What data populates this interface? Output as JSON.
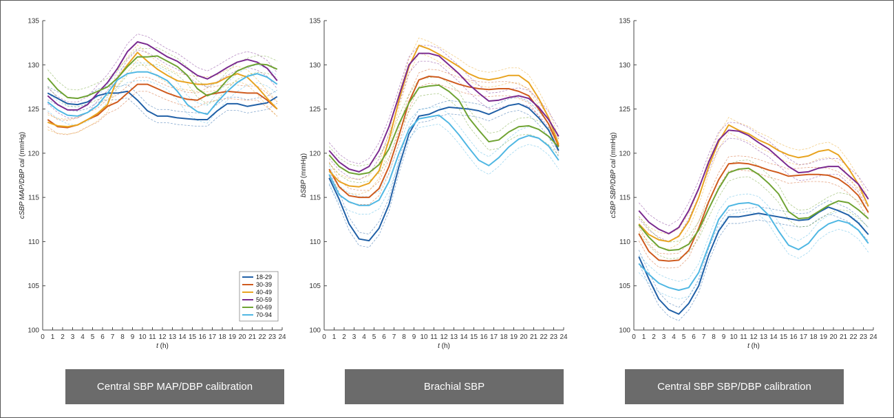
{
  "chart_data": [
    {
      "type": "line",
      "x": [
        0.5,
        1.5,
        2.5,
        3.5,
        4.5,
        5.5,
        6.5,
        7.5,
        8.5,
        9.5,
        10.5,
        11.5,
        12.5,
        13.5,
        14.5,
        15.5,
        16.5,
        17.5,
        18.5,
        19.5,
        20.5,
        21.5,
        22.5,
        23.5
      ],
      "xlabel": "t (h)",
      "ylabel_main": "cSBP MAP/DBP cal",
      "ylabel_unit": "(mmHg)",
      "xlim": [
        0,
        24
      ],
      "ylim": [
        100,
        135
      ],
      "xticks": [
        0,
        1,
        2,
        3,
        4,
        5,
        6,
        7,
        8,
        9,
        10,
        11,
        12,
        13,
        14,
        15,
        16,
        17,
        18,
        19,
        20,
        21,
        22,
        23,
        24
      ],
      "yticks": [
        100,
        105,
        110,
        115,
        120,
        125,
        130,
        135
      ],
      "legend_loc": "lower-right",
      "series": [
        {
          "name": "18-29",
          "color": "#1f5fa6",
          "values": [
            126.8,
            126.2,
            125.6,
            125.5,
            125.8,
            126.5,
            126.8,
            126.8,
            127.0,
            126.0,
            124.8,
            124.2,
            124.2,
            124.0,
            123.9,
            123.8,
            123.8,
            124.8,
            125.6,
            125.6,
            125.3,
            125.5,
            125.7,
            126.4
          ]
        },
        {
          "name": "30-39",
          "color": "#cf5a1d",
          "values": [
            123.8,
            123.0,
            122.9,
            123.2,
            123.8,
            124.3,
            125.3,
            125.8,
            126.8,
            127.8,
            127.8,
            127.3,
            126.8,
            126.4,
            126.1,
            126.0,
            126.6,
            126.8,
            127.0,
            126.9,
            126.8,
            126.8,
            126.0,
            125.0
          ]
        },
        {
          "name": "40-49",
          "color": "#e8a31f",
          "values": [
            123.5,
            123.1,
            123.0,
            123.2,
            123.8,
            124.5,
            125.5,
            128.5,
            130.0,
            131.4,
            130.4,
            129.5,
            128.8,
            128.2,
            128.0,
            127.8,
            127.8,
            128.0,
            128.6,
            129.0,
            128.6,
            127.5,
            126.2,
            125.0
          ]
        },
        {
          "name": "50-59",
          "color": "#7a2a8f",
          "values": [
            126.5,
            125.5,
            124.9,
            124.9,
            125.5,
            126.8,
            128.0,
            129.6,
            131.5,
            132.6,
            132.3,
            131.6,
            130.9,
            130.4,
            129.6,
            128.8,
            128.4,
            129.0,
            129.7,
            130.3,
            130.6,
            130.3,
            129.6,
            128.2
          ]
        },
        {
          "name": "60-69",
          "color": "#6fa332",
          "values": [
            128.5,
            127.2,
            126.3,
            126.2,
            126.5,
            127.0,
            127.5,
            128.5,
            129.8,
            130.9,
            130.9,
            131.0,
            130.4,
            129.8,
            128.8,
            127.3,
            126.5,
            127.0,
            128.3,
            129.3,
            129.8,
            130.1,
            130.0,
            129.5
          ]
        },
        {
          "name": "70-94",
          "color": "#4fb7e3",
          "values": [
            125.8,
            124.9,
            124.3,
            124.2,
            124.6,
            125.4,
            126.8,
            128.3,
            129.0,
            129.2,
            129.2,
            128.8,
            128.2,
            127.0,
            125.5,
            124.7,
            124.4,
            125.8,
            127.0,
            128.0,
            128.7,
            129.0,
            128.6,
            127.8
          ]
        }
      ]
    },
    {
      "type": "line",
      "x": [
        0.5,
        1.5,
        2.5,
        3.5,
        4.5,
        5.5,
        6.5,
        7.5,
        8.5,
        9.5,
        10.5,
        11.5,
        12.5,
        13.5,
        14.5,
        15.5,
        16.5,
        17.5,
        18.5,
        19.5,
        20.5,
        21.5,
        22.5,
        23.5
      ],
      "xlabel": "t (h)",
      "ylabel_main": "bSBP",
      "ylabel_unit": "(mmHg)",
      "xlim": [
        0,
        24
      ],
      "ylim": [
        100,
        135
      ],
      "xticks": [
        0,
        1,
        2,
        3,
        4,
        5,
        6,
        7,
        8,
        9,
        10,
        11,
        12,
        13,
        14,
        15,
        16,
        17,
        18,
        19,
        20,
        21,
        22,
        23,
        24
      ],
      "yticks": [
        100,
        105,
        110,
        115,
        120,
        125,
        130,
        135
      ],
      "series": [
        {
          "name": "18-29",
          "color": "#1f5fa6",
          "values": [
            117.2,
            114.8,
            112.0,
            110.3,
            110.1,
            111.5,
            114.2,
            118.5,
            122.2,
            124.2,
            124.4,
            124.9,
            125.2,
            125.1,
            125.0,
            124.8,
            124.4,
            124.9,
            125.4,
            125.6,
            125.1,
            124.0,
            122.6,
            120.3
          ]
        },
        {
          "name": "30-39",
          "color": "#cf5a1d",
          "values": [
            118.2,
            116.2,
            115.2,
            115.0,
            115.0,
            116.0,
            118.5,
            122.0,
            125.8,
            128.3,
            128.7,
            128.6,
            128.2,
            127.8,
            127.5,
            127.3,
            127.2,
            127.3,
            127.3,
            127.0,
            126.5,
            125.0,
            123.3,
            120.8
          ]
        },
        {
          "name": "40-49",
          "color": "#e8a31f",
          "values": [
            118.0,
            116.8,
            116.3,
            116.2,
            116.6,
            118.0,
            121.5,
            126.0,
            129.8,
            132.2,
            131.8,
            131.2,
            130.5,
            129.8,
            129.0,
            128.5,
            128.3,
            128.5,
            128.8,
            128.8,
            128.0,
            126.2,
            124.0,
            121.0
          ]
        },
        {
          "name": "50-59",
          "color": "#7a2a8f",
          "values": [
            120.3,
            119.0,
            118.2,
            117.9,
            118.5,
            120.3,
            123.0,
            126.5,
            130.0,
            131.3,
            131.3,
            131.0,
            130.0,
            129.0,
            127.8,
            126.8,
            125.9,
            126.0,
            126.3,
            126.5,
            126.2,
            125.2,
            123.8,
            121.9
          ]
        },
        {
          "name": "60-69",
          "color": "#6fa332",
          "values": [
            119.8,
            118.5,
            117.8,
            117.6,
            117.8,
            118.7,
            120.5,
            123.3,
            125.7,
            127.4,
            127.6,
            127.7,
            127.0,
            126.0,
            124.0,
            122.6,
            121.3,
            121.5,
            122.4,
            123.0,
            123.1,
            122.7,
            121.9,
            120.7
          ]
        },
        {
          "name": "70-94",
          "color": "#4fb7e3",
          "values": [
            117.6,
            115.3,
            114.5,
            114.1,
            114.1,
            114.7,
            116.8,
            120.0,
            122.7,
            123.9,
            124.1,
            124.3,
            123.4,
            122.1,
            120.6,
            119.2,
            118.6,
            119.5,
            120.7,
            121.6,
            122.0,
            121.7,
            120.8,
            119.2
          ]
        }
      ]
    },
    {
      "type": "line",
      "x": [
        0.5,
        1.5,
        2.5,
        3.5,
        4.5,
        5.5,
        6.5,
        7.5,
        8.5,
        9.5,
        10.5,
        11.5,
        12.5,
        13.5,
        14.5,
        15.5,
        16.5,
        17.5,
        18.5,
        19.5,
        20.5,
        21.5,
        22.5,
        23.5
      ],
      "xlabel": "t (h)",
      "ylabel_main": "cSBP SBP/DBP cal",
      "ylabel_unit": "(mmHg)",
      "xlim": [
        0,
        24
      ],
      "ylim": [
        100,
        135
      ],
      "xticks": [
        0,
        1,
        2,
        3,
        4,
        5,
        6,
        7,
        8,
        9,
        10,
        11,
        12,
        13,
        14,
        15,
        16,
        17,
        18,
        19,
        20,
        21,
        22,
        23,
        24
      ],
      "yticks": [
        100,
        105,
        110,
        115,
        120,
        125,
        130,
        135
      ],
      "series": [
        {
          "name": "18-29",
          "color": "#1f5fa6",
          "values": [
            108.3,
            105.8,
            103.5,
            102.3,
            101.8,
            103.0,
            105.0,
            108.5,
            111.2,
            112.8,
            112.8,
            113.0,
            113.2,
            113.0,
            112.8,
            112.6,
            112.4,
            112.5,
            113.3,
            113.9,
            113.5,
            113.0,
            112.1,
            110.8
          ]
        },
        {
          "name": "30-39",
          "color": "#cf5a1d",
          "values": [
            110.9,
            108.9,
            107.9,
            107.8,
            107.9,
            109.0,
            111.5,
            114.5,
            117.0,
            118.8,
            118.9,
            118.8,
            118.5,
            118.1,
            117.8,
            117.4,
            117.5,
            117.6,
            117.6,
            117.5,
            117.1,
            116.3,
            115.2,
            113.3
          ]
        },
        {
          "name": "40-49",
          "color": "#e8a31f",
          "values": [
            112.0,
            110.8,
            110.2,
            110.0,
            110.6,
            112.3,
            115.0,
            118.5,
            121.3,
            123.2,
            122.6,
            122.2,
            121.5,
            121.0,
            120.3,
            119.8,
            119.5,
            119.7,
            120.2,
            120.4,
            119.8,
            118.3,
            116.5,
            114.0
          ]
        },
        {
          "name": "50-59",
          "color": "#7a2a8f",
          "values": [
            113.5,
            112.2,
            111.4,
            110.9,
            111.6,
            113.5,
            116.0,
            119.0,
            121.5,
            122.6,
            122.5,
            122.0,
            121.2,
            120.5,
            119.5,
            118.5,
            117.8,
            117.9,
            118.3,
            118.5,
            118.5,
            117.5,
            116.5,
            114.8
          ]
        },
        {
          "name": "60-69",
          "color": "#6fa332",
          "values": [
            111.9,
            110.5,
            109.4,
            109.0,
            109.1,
            109.7,
            111.3,
            113.7,
            116.0,
            117.8,
            118.2,
            118.3,
            117.6,
            116.6,
            115.4,
            113.4,
            112.6,
            112.7,
            113.4,
            114.1,
            114.6,
            114.4,
            113.6,
            112.6
          ]
        },
        {
          "name": "70-94",
          "color": "#4fb7e3",
          "values": [
            107.5,
            106.3,
            105.3,
            104.8,
            104.5,
            104.8,
            106.5,
            109.5,
            112.5,
            114.0,
            114.3,
            114.4,
            114.1,
            113.0,
            111.2,
            109.6,
            109.1,
            109.8,
            111.2,
            112.0,
            112.4,
            112.1,
            111.3,
            109.8
          ]
        }
      ]
    }
  ],
  "captions": {
    "left": "Central SBP MAP/DBP calibration",
    "middle": "Brachial SBP",
    "right": "Central SBP SBP/DBP calibration"
  }
}
